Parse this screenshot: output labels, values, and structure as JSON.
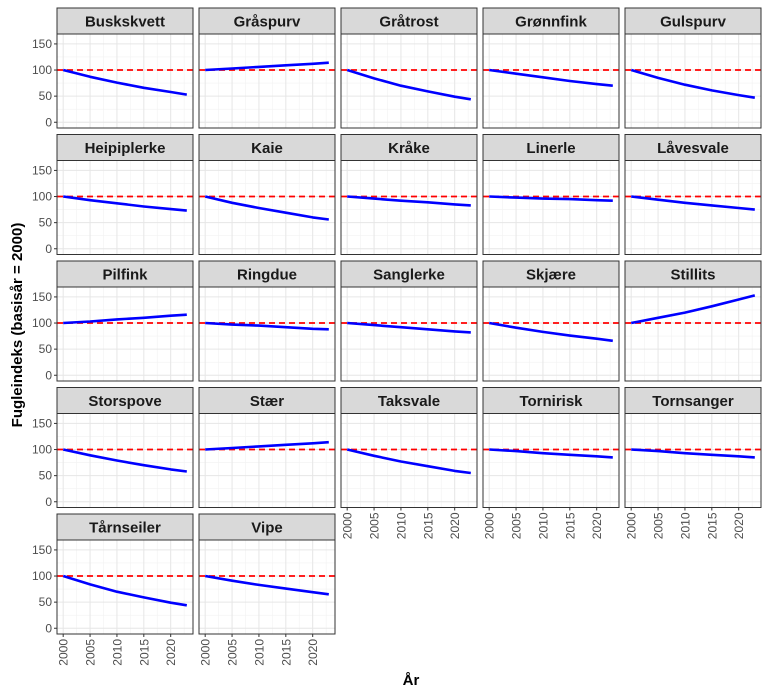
{
  "chart_data": {
    "type": "line",
    "facet_columns": 5,
    "xlabel": "År",
    "ylabel": "Fugleindeks (basisår = 2000)",
    "x": [
      2000,
      2005,
      2010,
      2015,
      2020,
      2023
    ],
    "xlim": [
      1998.85,
      2024.15
    ],
    "ylim": [
      -11,
      169
    ],
    "x_ticks": [
      2000,
      2005,
      2010,
      2015,
      2020
    ],
    "y_ticks": [
      0,
      50,
      100,
      150
    ],
    "reference_line": {
      "y": 100,
      "style": "dashed",
      "color": "#ff0000"
    },
    "line_color": "#0000ff",
    "grid": true,
    "series": [
      {
        "name": "Buskskvett",
        "values": [
          100,
          87,
          76,
          66,
          58,
          53
        ]
      },
      {
        "name": "Gråspurv",
        "values": [
          100,
          103,
          106,
          109,
          112,
          114
        ]
      },
      {
        "name": "Gråtrost",
        "values": [
          100,
          84,
          70,
          59,
          49,
          44
        ]
      },
      {
        "name": "Grønnfink",
        "values": [
          100,
          93,
          86,
          79,
          73,
          70
        ]
      },
      {
        "name": "Gulspurv",
        "values": [
          100,
          85,
          72,
          61,
          52,
          47
        ]
      },
      {
        "name": "Heipiplerke",
        "values": [
          100,
          93,
          87,
          81,
          76,
          73
        ]
      },
      {
        "name": "Kaie",
        "values": [
          100,
          88,
          78,
          69,
          60,
          56
        ]
      },
      {
        "name": "Kråke",
        "values": [
          100,
          96,
          92,
          89,
          85,
          83
        ]
      },
      {
        "name": "Linerle",
        "values": [
          100,
          98,
          96,
          95,
          93,
          92
        ]
      },
      {
        "name": "Låvesvale",
        "values": [
          100,
          94,
          88,
          83,
          78,
          75
        ]
      },
      {
        "name": "Pilfink",
        "values": [
          100,
          103,
          107,
          110,
          114,
          116
        ]
      },
      {
        "name": "Ringdue",
        "values": [
          100,
          97,
          95,
          92,
          89,
          88
        ]
      },
      {
        "name": "Sanglerke",
        "values": [
          100,
          96,
          92,
          88,
          84,
          82
        ]
      },
      {
        "name": "Skjære",
        "values": [
          100,
          91,
          83,
          76,
          70,
          66
        ]
      },
      {
        "name": "Stillits",
        "values": [
          100,
          110,
          120,
          132,
          145,
          153
        ]
      },
      {
        "name": "Storspove",
        "values": [
          100,
          89,
          79,
          70,
          62,
          58
        ]
      },
      {
        "name": "Stær",
        "values": [
          100,
          103,
          106,
          109,
          112,
          114
        ]
      },
      {
        "name": "Taksvale",
        "values": [
          100,
          88,
          77,
          68,
          59,
          55
        ]
      },
      {
        "name": "Tornirisk",
        "values": [
          100,
          97,
          93,
          90,
          87,
          85
        ]
      },
      {
        "name": "Tornsanger",
        "values": [
          100,
          97,
          93,
          90,
          87,
          85
        ]
      },
      {
        "name": "Tårnseiler",
        "values": [
          100,
          84,
          70,
          59,
          49,
          44
        ]
      },
      {
        "name": "Vipe",
        "values": [
          100,
          91,
          83,
          76,
          69,
          65
        ]
      }
    ]
  }
}
